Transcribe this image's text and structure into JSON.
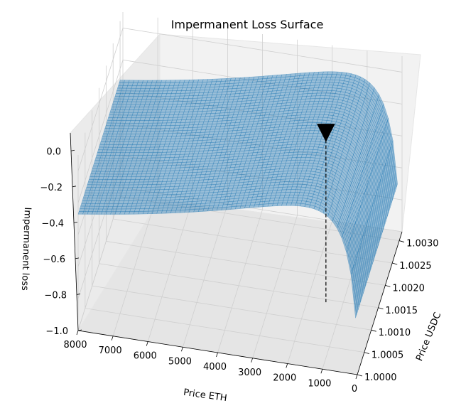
{
  "chart_data": {
    "type": "surface",
    "title": "Impermanent Loss Surface",
    "xlabel": "Price ETH",
    "ylabel": "Price USDC",
    "zlabel": "Impermanent loss",
    "x_ticks": [
      "8000",
      "7000",
      "6000",
      "5000",
      "4000",
      "3000",
      "2000",
      "1000",
      "0"
    ],
    "y_ticks": [
      "1.0000",
      "1.0005",
      "1.0010",
      "1.0015",
      "1.0020",
      "1.0025",
      "1.0030"
    ],
    "z_ticks": [
      "0.0",
      "−0.2",
      "−0.4",
      "−0.6",
      "−0.8",
      "−1.0"
    ],
    "xlim": [
      0,
      8000
    ],
    "ylim": [
      1.0,
      1.0032
    ],
    "zlim": [
      -1.0,
      0.1
    ],
    "surface": {
      "formula": "2*sqrt(r)/(1+r)-1, r = (Price ETH / Price USDC) / 1500",
      "color": "#1f77b4",
      "x_range": [
        50,
        8000
      ],
      "y_range": [
        1.0,
        1.003
      ]
    },
    "marker": {
      "x": 1500,
      "y": 1.0015,
      "z": 0.0,
      "shape": "triangle-down",
      "color": "#000000"
    },
    "grid": true
  }
}
